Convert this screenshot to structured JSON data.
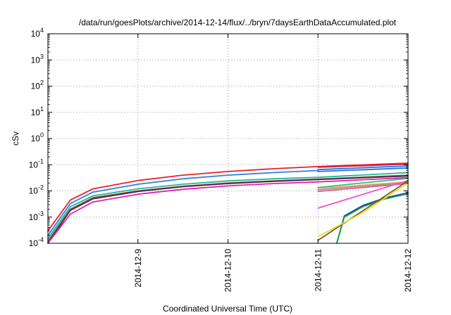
{
  "chart_data": {
    "type": "line",
    "title": "/data/run/goesPlots/archive/2014-12-14/flux/../bryn/7daysEarthDataAccumulated.plot",
    "xlabel": "Coordinated Universal Time (UTC)",
    "ylabel": "cSv",
    "x_scale": "time",
    "y_scale": "log",
    "xlim": [
      "2014-12-08",
      "2014-12-12"
    ],
    "ylim": [
      0.0001,
      10000
    ],
    "x_ticks": [
      "2014-12-9",
      "2014-12-10",
      "2014-12-11",
      "2014-12-12"
    ],
    "y_ticks": [
      {
        "base": "10",
        "exp": "-4"
      },
      {
        "base": "10",
        "exp": "-3"
      },
      {
        "base": "10",
        "exp": "-2"
      },
      {
        "base": "10",
        "exp": "-1"
      },
      {
        "base": "10",
        "exp": "0"
      },
      {
        "base": "10",
        "exp": "1"
      },
      {
        "base": "10",
        "exp": "2"
      },
      {
        "base": "10",
        "exp": "3"
      },
      {
        "base": "10",
        "exp": "4"
      }
    ],
    "grid": true,
    "series": [
      {
        "color": "#e8202a",
        "x": [
          "2014-12-08T00:00",
          "2014-12-08T06:00",
          "2014-12-08T12:00",
          "2014-12-09T00:00",
          "2014-12-09T12:00",
          "2014-12-10T00:00",
          "2014-12-10T12:00",
          "2014-12-11T00:00"
        ],
        "y": [
          0.0003,
          0.0045,
          0.012,
          0.025,
          0.04,
          0.055,
          0.07,
          0.085
        ]
      },
      {
        "color": "#2e7fe8",
        "x": [
          "2014-12-08T00:00",
          "2014-12-08T06:00",
          "2014-12-08T12:00",
          "2014-12-09T00:00",
          "2014-12-09T12:00",
          "2014-12-10T00:00",
          "2014-12-10T12:00",
          "2014-12-11T00:00"
        ],
        "y": [
          0.0002,
          0.0033,
          0.009,
          0.018,
          0.029,
          0.04,
          0.05,
          0.06
        ]
      },
      {
        "color": "#20b59a",
        "x": [
          "2014-12-08T00:00",
          "2014-12-08T06:00",
          "2014-12-08T12:00",
          "2014-12-09T00:00",
          "2014-12-09T12:00",
          "2014-12-10T00:00",
          "2014-12-10T12:00",
          "2014-12-11T00:00"
        ],
        "y": [
          0.00015,
          0.0025,
          0.0065,
          0.012,
          0.018,
          0.024,
          0.029,
          0.033
        ]
      },
      {
        "color": "#7a5c20",
        "x": [
          "2014-12-08T00:00",
          "2014-12-08T06:00",
          "2014-12-08T12:00",
          "2014-12-09T00:00",
          "2014-12-09T12:00",
          "2014-12-10T00:00",
          "2014-12-10T12:00",
          "2014-12-11T00:00"
        ],
        "y": [
          0.00012,
          0.002,
          0.0055,
          0.01,
          0.015,
          0.02,
          0.024,
          0.028
        ]
      },
      {
        "color": "#4a2a5a",
        "x": [
          "2014-12-08T00:00",
          "2014-12-08T06:00",
          "2014-12-08T12:00",
          "2014-12-09T00:00",
          "2014-12-09T12:00",
          "2014-12-10T00:00",
          "2014-12-10T12:00",
          "2014-12-11T00:00"
        ],
        "y": [
          0.0001,
          0.0018,
          0.005,
          0.0095,
          0.0145,
          0.019,
          0.023,
          0.027
        ]
      },
      {
        "color": "#e020b0",
        "x": [
          "2014-12-08T00:00",
          "2014-12-08T06:00",
          "2014-12-08T12:00",
          "2014-12-09T00:00",
          "2014-12-09T12:00",
          "2014-12-10T00:00",
          "2014-12-10T12:00",
          "2014-12-11T00:00"
        ],
        "y": [
          0.0001,
          0.0013,
          0.0038,
          0.0075,
          0.0115,
          0.0155,
          0.019,
          0.022
        ]
      },
      {
        "color": "#e8202a",
        "x": [
          "2014-12-11T00:00",
          "2014-12-12T00:00"
        ],
        "y": [
          0.085,
          0.115
        ]
      },
      {
        "color": "#d02040",
        "x": [
          "2014-12-11T00:00",
          "2014-12-12T00:00"
        ],
        "y": [
          0.08,
          0.105
        ]
      },
      {
        "color": "#1f6fe0",
        "x": [
          "2014-12-11T00:00",
          "2014-12-12T00:00"
        ],
        "y": [
          0.065,
          0.09
        ]
      },
      {
        "color": "#1f6fe0",
        "x": [
          "2014-12-11T00:00",
          "2014-12-12T00:00"
        ],
        "y": [
          0.055,
          0.075
        ]
      },
      {
        "color": "#20b59a",
        "x": [
          "2014-12-11T00:00",
          "2014-12-12T00:00"
        ],
        "y": [
          0.033,
          0.05
        ]
      },
      {
        "color": "#7a5c20",
        "x": [
          "2014-12-11T00:00",
          "2014-12-12T00:00"
        ],
        "y": [
          0.028,
          0.04
        ]
      },
      {
        "color": "#4a2a5a",
        "x": [
          "2014-12-11T00:00",
          "2014-12-12T00:00"
        ],
        "y": [
          0.027,
          0.037
        ]
      },
      {
        "color": "#e020b0",
        "x": [
          "2014-12-11T00:00",
          "2014-12-12T00:00"
        ],
        "y": [
          0.022,
          0.032
        ]
      },
      {
        "color": "#30c070",
        "x": [
          "2014-12-11T00:00",
          "2014-12-12T00:00"
        ],
        "y": [
          0.0135,
          0.03
        ]
      },
      {
        "color": "#e6a0a0",
        "x": [
          "2014-12-11T00:00",
          "2014-12-12T00:00"
        ],
        "y": [
          0.0125,
          0.022
        ]
      },
      {
        "color": "#b0a040",
        "x": [
          "2014-12-11T00:00",
          "2014-12-12T00:00"
        ],
        "y": [
          0.011,
          0.021
        ]
      },
      {
        "color": "#d060c0",
        "x": [
          "2014-12-11T00:00",
          "2014-12-12T00:00"
        ],
        "y": [
          0.0095,
          0.019
        ]
      },
      {
        "color": "#f050d0",
        "x": [
          "2014-12-11T00:00",
          "2014-12-12T00:00"
        ],
        "y": [
          0.0022,
          0.025
        ]
      },
      {
        "color": "#2040d0",
        "x": [
          "2014-12-11T05:00",
          "2014-12-11T07:00",
          "2014-12-11T12:00",
          "2014-12-11T18:00",
          "2014-12-12T00:00"
        ],
        "y": [
          0.0001,
          0.0011,
          0.0028,
          0.0055,
          0.0085
        ]
      },
      {
        "color": "#1a9a3a",
        "x": [
          "2014-12-11T05:00",
          "2014-12-11T07:00",
          "2014-12-11T12:00",
          "2014-12-11T18:00",
          "2014-12-12T00:00"
        ],
        "y": [
          0.0001,
          0.001,
          0.0025,
          0.005,
          0.0078
        ]
      },
      {
        "color": "#7a5c20",
        "x": [
          "2014-12-11T00:00",
          "2014-12-12T00:00"
        ],
        "y": [
          0.00013,
          0.024
        ]
      },
      {
        "color": "#e8e020",
        "x": [
          "2014-12-11T00:00",
          "2014-12-11T12:00",
          "2014-12-12T00:00"
        ],
        "y": [
          0.00018,
          0.0015,
          0.02
        ]
      }
    ]
  }
}
